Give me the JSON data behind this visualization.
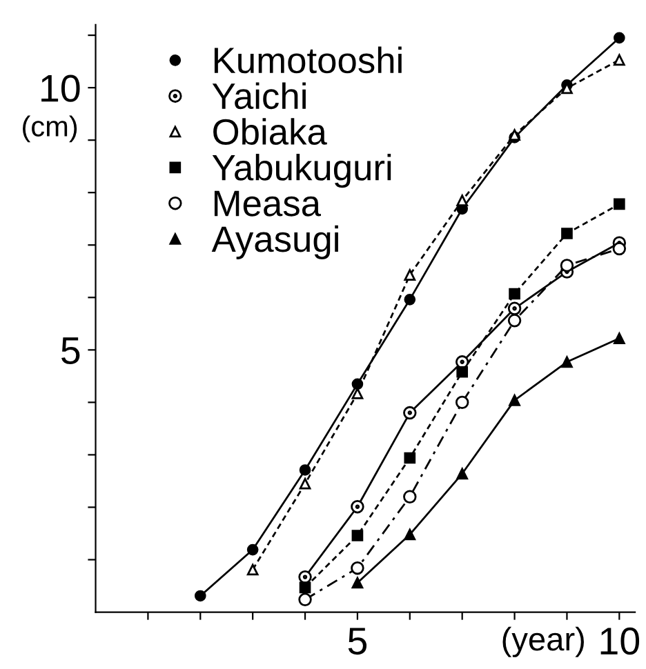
{
  "chart_data": {
    "type": "line",
    "xlabel": "(year)",
    "ylabel": "(cm)",
    "xlim": [
      0,
      10.3
    ],
    "ylim": [
      0,
      11.2
    ],
    "xticks": [
      {
        "value": 1,
        "label": null
      },
      {
        "value": 2,
        "label": null
      },
      {
        "value": 3,
        "label": null
      },
      {
        "value": 4,
        "label": null
      },
      5,
      {
        "value": 6,
        "label": null
      },
      {
        "value": 7,
        "label": null
      },
      {
        "value": 8,
        "label": null
      },
      {
        "value": 9,
        "label": null
      },
      10
    ],
    "yticks": [
      {
        "value": 1,
        "label": null
      },
      {
        "value": 2,
        "label": null
      },
      {
        "value": 3,
        "label": null
      },
      {
        "value": 4,
        "label": null
      },
      5,
      {
        "value": 6,
        "label": null
      },
      {
        "value": 7,
        "label": null
      },
      {
        "value": 8,
        "label": null
      },
      {
        "value": 9,
        "label": null
      },
      10,
      {
        "value": 11,
        "label": null
      }
    ],
    "grid": false,
    "legend": "top left",
    "series": [
      {
        "name": "Kumotooshi",
        "color": "#000000",
        "marker": "circle",
        "line_style": "solid",
        "x": [
          2,
          3,
          4,
          5,
          6,
          7,
          8,
          9,
          10
        ],
        "values": [
          0.31,
          1.19,
          2.71,
          4.35,
          5.96,
          7.69,
          9.05,
          10.05,
          10.95
        ]
      },
      {
        "name": "Yaichi",
        "color": "#000000",
        "marker": "circle_dot",
        "line_style": "solid",
        "x": [
          4,
          5,
          6,
          7,
          8,
          9,
          10
        ],
        "values": [
          0.67,
          2.01,
          3.8,
          4.77,
          5.79,
          6.49,
          7.04
        ]
      },
      {
        "name": "Obiaka",
        "color": "#000000",
        "marker": "triangle_open",
        "line_style": "dotted",
        "x": [
          3,
          4,
          5,
          6,
          7,
          8,
          9,
          10
        ],
        "values": [
          0.81,
          2.45,
          4.17,
          6.43,
          7.85,
          9.1,
          9.99,
          10.53
        ]
      },
      {
        "name": "Yabukuguri",
        "color": "#000000",
        "marker": "square",
        "line_style": "dotted",
        "x": [
          4,
          5,
          6,
          7,
          8,
          9,
          10
        ],
        "values": [
          0.47,
          1.46,
          2.94,
          4.58,
          6.07,
          7.22,
          7.78
        ]
      },
      {
        "name": "Measa",
        "color": "#000000",
        "marker": "circle_open",
        "line_style": "dashed",
        "x": [
          4,
          5,
          6,
          7,
          8,
          9,
          10
        ],
        "values": [
          0.24,
          0.84,
          2.2,
          4.0,
          5.56,
          6.61,
          6.93
        ]
      },
      {
        "name": "Ayasugi",
        "color": "#000000",
        "marker": "triangle",
        "line_style": "solid",
        "x": [
          5,
          6,
          7,
          8,
          9,
          10
        ],
        "values": [
          0.56,
          1.48,
          2.64,
          4.04,
          4.77,
          5.22
        ]
      }
    ]
  }
}
